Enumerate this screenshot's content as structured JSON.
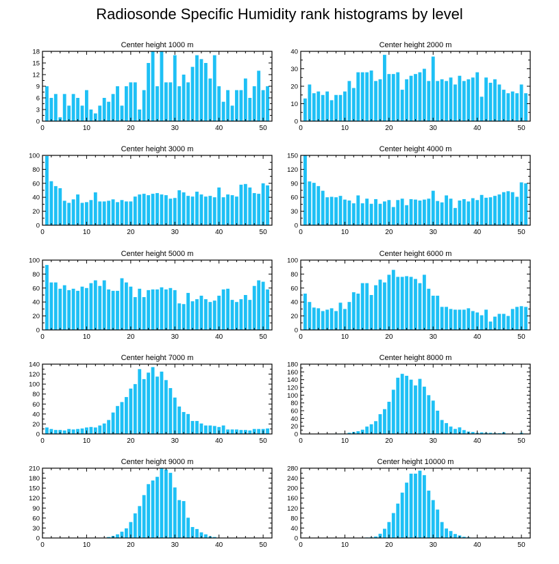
{
  "title": "Radiosonde Specific Humidity rank histograms by level",
  "bar_color": "#1ec0f5",
  "chart_data": [
    {
      "type": "bar",
      "title": "Center height 1000 m",
      "xlabel": "",
      "ylabel": "",
      "xlim": [
        0,
        52
      ],
      "xticks": [
        0,
        10,
        20,
        30,
        40,
        50
      ],
      "ylim": [
        0,
        18
      ],
      "yticks": [
        0,
        3,
        6,
        9,
        12,
        15,
        18
      ],
      "categories": [
        1,
        2,
        3,
        4,
        5,
        6,
        7,
        8,
        9,
        10,
        11,
        12,
        13,
        14,
        15,
        16,
        17,
        18,
        19,
        20,
        21,
        22,
        23,
        24,
        25,
        26,
        27,
        28,
        29,
        30,
        31,
        32,
        33,
        34,
        35,
        36,
        37,
        38,
        39,
        40,
        41,
        42,
        43,
        44,
        45,
        46,
        47,
        48,
        49,
        50,
        51
      ],
      "values": [
        9,
        6,
        7,
        1,
        7,
        4,
        7,
        6,
        4,
        8,
        3,
        2,
        4,
        6,
        5,
        7,
        9,
        4,
        9,
        10,
        10,
        3,
        8,
        15,
        18,
        9,
        18,
        10,
        10,
        17,
        9,
        12,
        10,
        14,
        17,
        16,
        15,
        11,
        17,
        9,
        5,
        8,
        4,
        8,
        8,
        11,
        6,
        9,
        13,
        8,
        9
      ]
    },
    {
      "type": "bar",
      "title": "Center height 2000 m",
      "xlabel": "",
      "ylabel": "",
      "xlim": [
        0,
        52
      ],
      "xticks": [
        0,
        10,
        20,
        30,
        40,
        50
      ],
      "ylim": [
        0,
        40
      ],
      "yticks": [
        0,
        10,
        20,
        30,
        40
      ],
      "categories": [
        1,
        2,
        3,
        4,
        5,
        6,
        7,
        8,
        9,
        10,
        11,
        12,
        13,
        14,
        15,
        16,
        17,
        18,
        19,
        20,
        21,
        22,
        23,
        24,
        25,
        26,
        27,
        28,
        29,
        30,
        31,
        32,
        33,
        34,
        35,
        36,
        37,
        38,
        39,
        40,
        41,
        42,
        43,
        44,
        45,
        46,
        47,
        48,
        49,
        50,
        51
      ],
      "values": [
        13,
        21,
        16,
        17,
        15,
        17,
        12,
        15,
        15,
        17,
        23,
        19,
        28,
        28,
        28,
        29,
        23,
        24,
        38,
        27,
        27,
        28,
        18,
        24,
        26,
        27,
        28,
        30,
        23,
        37,
        23,
        24,
        23,
        25,
        21,
        26,
        23,
        24,
        25,
        28,
        14,
        25,
        22,
        24,
        21,
        18,
        16,
        17,
        16,
        21,
        16
      ]
    },
    {
      "type": "bar",
      "title": "Center height 3000 m",
      "xlabel": "",
      "ylabel": "",
      "xlim": [
        0,
        52
      ],
      "xticks": [
        0,
        10,
        20,
        30,
        40,
        50
      ],
      "ylim": [
        0,
        100
      ],
      "yticks": [
        0,
        20,
        40,
        60,
        80,
        100
      ],
      "categories": [
        1,
        2,
        3,
        4,
        5,
        6,
        7,
        8,
        9,
        10,
        11,
        12,
        13,
        14,
        15,
        16,
        17,
        18,
        19,
        20,
        21,
        22,
        23,
        24,
        25,
        26,
        27,
        28,
        29,
        30,
        31,
        32,
        33,
        34,
        35,
        36,
        37,
        38,
        39,
        40,
        41,
        42,
        43,
        44,
        45,
        46,
        47,
        48,
        49,
        50,
        51
      ],
      "values": [
        99,
        63,
        56,
        53,
        35,
        32,
        37,
        44,
        32,
        33,
        36,
        47,
        34,
        34,
        35,
        37,
        33,
        36,
        34,
        34,
        41,
        44,
        45,
        43,
        45,
        46,
        44,
        43,
        38,
        39,
        50,
        47,
        42,
        41,
        48,
        44,
        41,
        42,
        40,
        54,
        40,
        44,
        43,
        41,
        58,
        59,
        54,
        46,
        45,
        60,
        57
      ]
    },
    {
      "type": "bar",
      "title": "Center height 4000 m",
      "xlabel": "",
      "ylabel": "",
      "xlim": [
        0,
        52
      ],
      "xticks": [
        0,
        10,
        20,
        30,
        40,
        50
      ],
      "ylim": [
        0,
        150
      ],
      "yticks": [
        0,
        30,
        60,
        90,
        120,
        150
      ],
      "categories": [
        1,
        2,
        3,
        4,
        5,
        6,
        7,
        8,
        9,
        10,
        11,
        12,
        13,
        14,
        15,
        16,
        17,
        18,
        19,
        20,
        21,
        22,
        23,
        24,
        25,
        26,
        27,
        28,
        29,
        30,
        31,
        32,
        33,
        34,
        35,
        36,
        37,
        38,
        39,
        40,
        41,
        42,
        43,
        44,
        45,
        46,
        47,
        48,
        49,
        50,
        51
      ],
      "values": [
        150,
        94,
        91,
        84,
        74,
        60,
        61,
        60,
        63,
        55,
        53,
        47,
        64,
        47,
        57,
        46,
        56,
        46,
        51,
        54,
        39,
        54,
        57,
        43,
        56,
        55,
        53,
        55,
        57,
        74,
        52,
        49,
        64,
        57,
        37,
        53,
        56,
        51,
        58,
        54,
        65,
        59,
        60,
        63,
        66,
        71,
        73,
        71,
        61,
        92,
        90
      ]
    },
    {
      "type": "bar",
      "title": "Center height 5000 m",
      "xlabel": "",
      "ylabel": "",
      "xlim": [
        0,
        52
      ],
      "xticks": [
        0,
        10,
        20,
        30,
        40,
        50
      ],
      "ylim": [
        0,
        100
      ],
      "yticks": [
        0,
        20,
        40,
        60,
        80,
        100
      ],
      "categories": [
        1,
        2,
        3,
        4,
        5,
        6,
        7,
        8,
        9,
        10,
        11,
        12,
        13,
        14,
        15,
        16,
        17,
        18,
        19,
        20,
        21,
        22,
        23,
        24,
        25,
        26,
        27,
        28,
        29,
        30,
        31,
        32,
        33,
        34,
        35,
        36,
        37,
        38,
        39,
        40,
        41,
        42,
        43,
        44,
        45,
        46,
        47,
        48,
        49,
        50,
        51
      ],
      "values": [
        93,
        68,
        68,
        59,
        64,
        57,
        59,
        56,
        62,
        60,
        67,
        71,
        63,
        71,
        58,
        56,
        56,
        74,
        68,
        62,
        47,
        59,
        47,
        57,
        58,
        58,
        61,
        58,
        60,
        57,
        38,
        37,
        53,
        41,
        44,
        49,
        44,
        40,
        42,
        49,
        58,
        59,
        43,
        40,
        44,
        50,
        43,
        63,
        71,
        69,
        58
      ]
    },
    {
      "type": "bar",
      "title": "Center height 6000 m",
      "xlabel": "",
      "ylabel": "",
      "xlim": [
        0,
        52
      ],
      "xticks": [
        0,
        10,
        20,
        30,
        40,
        50
      ],
      "ylim": [
        0,
        100
      ],
      "yticks": [
        0,
        20,
        40,
        60,
        80,
        100
      ],
      "categories": [
        1,
        2,
        3,
        4,
        5,
        6,
        7,
        8,
        9,
        10,
        11,
        12,
        13,
        14,
        15,
        16,
        17,
        18,
        19,
        20,
        21,
        22,
        23,
        24,
        25,
        26,
        27,
        28,
        29,
        30,
        31,
        32,
        33,
        34,
        35,
        36,
        37,
        38,
        39,
        40,
        41,
        42,
        43,
        44,
        45,
        46,
        47,
        48,
        49,
        50,
        51
      ],
      "values": [
        52,
        40,
        32,
        31,
        27,
        29,
        31,
        27,
        39,
        30,
        40,
        54,
        52,
        67,
        67,
        50,
        64,
        72,
        68,
        79,
        86,
        76,
        76,
        77,
        76,
        73,
        67,
        79,
        59,
        49,
        49,
        33,
        33,
        30,
        29,
        29,
        29,
        31,
        27,
        25,
        21,
        29,
        12,
        19,
        23,
        23,
        20,
        30,
        33,
        34,
        33
      ]
    },
    {
      "type": "bar",
      "title": "Center height 7000 m",
      "xlabel": "",
      "ylabel": "",
      "xlim": [
        0,
        52
      ],
      "xticks": [
        0,
        10,
        20,
        30,
        40,
        50
      ],
      "ylim": [
        0,
        140
      ],
      "yticks": [
        0,
        20,
        40,
        60,
        80,
        100,
        120,
        140
      ],
      "categories": [
        1,
        2,
        3,
        4,
        5,
        6,
        7,
        8,
        9,
        10,
        11,
        12,
        13,
        14,
        15,
        16,
        17,
        18,
        19,
        20,
        21,
        22,
        23,
        24,
        25,
        26,
        27,
        28,
        29,
        30,
        31,
        32,
        33,
        34,
        35,
        36,
        37,
        38,
        39,
        40,
        41,
        42,
        43,
        44,
        45,
        46,
        47,
        48,
        49,
        50,
        51
      ],
      "values": [
        13,
        10,
        8,
        8,
        7,
        10,
        9,
        10,
        11,
        13,
        14,
        13,
        17,
        21,
        28,
        43,
        56,
        64,
        74,
        91,
        100,
        130,
        110,
        123,
        134,
        115,
        125,
        108,
        92,
        73,
        55,
        44,
        40,
        26,
        26,
        21,
        17,
        17,
        16,
        14,
        17,
        9,
        9,
        9,
        8,
        8,
        7,
        10,
        10,
        10,
        11
      ]
    },
    {
      "type": "bar",
      "title": "Center height 8000 m",
      "xlabel": "",
      "ylabel": "",
      "xlim": [
        0,
        52
      ],
      "xticks": [
        0,
        10,
        20,
        30,
        40,
        50
      ],
      "ylim": [
        0,
        180
      ],
      "yticks": [
        0,
        20,
        40,
        60,
        80,
        100,
        120,
        140,
        160,
        180
      ],
      "categories": [
        1,
        2,
        3,
        4,
        5,
        6,
        7,
        8,
        9,
        10,
        11,
        12,
        13,
        14,
        15,
        16,
        17,
        18,
        19,
        20,
        21,
        22,
        23,
        24,
        25,
        26,
        27,
        28,
        29,
        30,
        31,
        32,
        33,
        34,
        35,
        36,
        37,
        38,
        39,
        40,
        41,
        42,
        43,
        44,
        45,
        46,
        47,
        48,
        49,
        50,
        51
      ],
      "values": [
        0,
        0,
        0,
        0,
        0,
        0,
        0,
        1,
        1,
        1,
        3,
        5,
        7,
        11,
        19,
        25,
        33,
        51,
        64,
        83,
        114,
        145,
        155,
        150,
        140,
        125,
        142,
        122,
        100,
        86,
        60,
        36,
        28,
        19,
        13,
        17,
        10,
        6,
        5,
        3,
        4,
        3,
        3,
        2,
        2,
        4,
        1,
        1,
        1,
        3,
        1
      ]
    },
    {
      "type": "bar",
      "title": "Center height 9000 m",
      "xlabel": "",
      "ylabel": "",
      "xlim": [
        0,
        52
      ],
      "xticks": [
        0,
        10,
        20,
        30,
        40,
        50
      ],
      "ylim": [
        0,
        210
      ],
      "yticks": [
        0,
        30,
        60,
        90,
        120,
        150,
        180,
        210
      ],
      "categories": [
        1,
        2,
        3,
        4,
        5,
        6,
        7,
        8,
        9,
        10,
        11,
        12,
        13,
        14,
        15,
        16,
        17,
        18,
        19,
        20,
        21,
        22,
        23,
        24,
        25,
        26,
        27,
        28,
        29,
        30,
        31,
        32,
        33,
        34,
        35,
        36,
        37,
        38,
        39,
        40,
        41,
        42,
        43,
        44,
        45,
        46,
        47,
        48,
        49,
        50,
        51
      ],
      "values": [
        0,
        0,
        0,
        0,
        0,
        0,
        0,
        0,
        0,
        0,
        1,
        1,
        1,
        1,
        3,
        6,
        11,
        19,
        29,
        48,
        74,
        96,
        129,
        162,
        173,
        184,
        210,
        206,
        196,
        152,
        114,
        111,
        61,
        33,
        27,
        17,
        11,
        5,
        3,
        1,
        1,
        0,
        0,
        0,
        0,
        0,
        0,
        0,
        0,
        0,
        0
      ]
    },
    {
      "type": "bar",
      "title": "Center height 10000 m",
      "xlabel": "",
      "ylabel": "",
      "xlim": [
        0,
        52
      ],
      "xticks": [
        0,
        10,
        20,
        30,
        40,
        50
      ],
      "ylim": [
        0,
        280
      ],
      "yticks": [
        0,
        40,
        80,
        120,
        160,
        200,
        240,
        280
      ],
      "categories": [
        1,
        2,
        3,
        4,
        5,
        6,
        7,
        8,
        9,
        10,
        11,
        12,
        13,
        14,
        15,
        16,
        17,
        18,
        19,
        20,
        21,
        22,
        23,
        24,
        25,
        26,
        27,
        28,
        29,
        30,
        31,
        32,
        33,
        34,
        35,
        36,
        37,
        38,
        39,
        40,
        41,
        42,
        43,
        44,
        45,
        46,
        47,
        48,
        49,
        50,
        51
      ],
      "values": [
        0,
        0,
        0,
        0,
        0,
        0,
        0,
        0,
        0,
        0,
        0,
        0,
        0,
        1,
        2,
        3,
        6,
        17,
        37,
        64,
        100,
        138,
        182,
        222,
        258,
        258,
        270,
        252,
        190,
        152,
        114,
        64,
        38,
        28,
        16,
        10,
        5,
        3,
        1,
        1,
        0,
        0,
        0,
        0,
        0,
        0,
        0,
        0,
        0,
        0,
        0
      ]
    }
  ]
}
